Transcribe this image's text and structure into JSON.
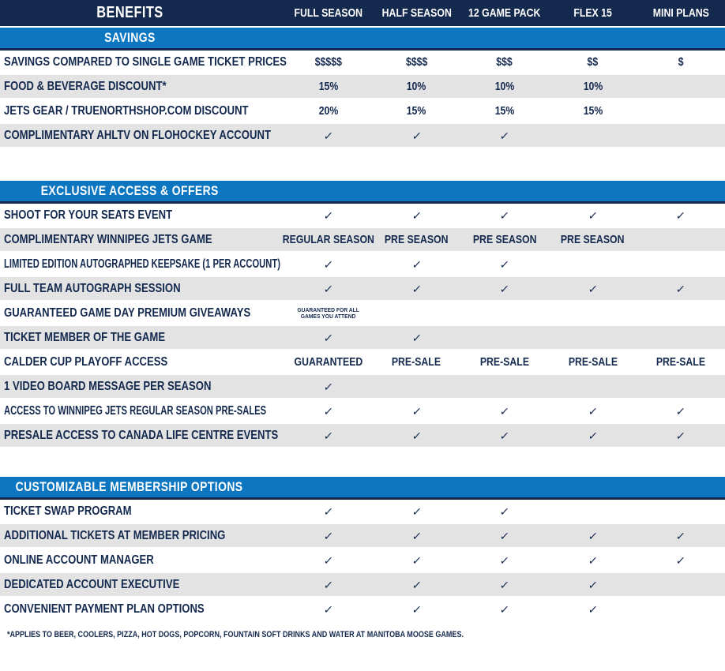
{
  "chart_data": {
    "type": "table",
    "title": "BENEFITS",
    "columns": [
      "FULL SEASON",
      "HALF SEASON",
      "12 GAME PACK",
      "FLEX 15",
      "MINI PLANS"
    ],
    "sections": [
      {
        "title": "SAVINGS",
        "rows": [
          {
            "label": "SAVINGS COMPARED TO SINGLE GAME TICKET PRICES",
            "values": [
              "$$$$$",
              "$$$$",
              "$$$",
              "$$",
              "$"
            ]
          },
          {
            "label": "FOOD & BEVERAGE DISCOUNT*",
            "values": [
              "15%",
              "10%",
              "10%",
              "10%",
              ""
            ]
          },
          {
            "label": "JETS GEAR / TRUENORTHSHOP.COM DISCOUNT",
            "values": [
              "20%",
              "15%",
              "15%",
              "15%",
              ""
            ]
          },
          {
            "label": "COMPLIMENTARY AHLTV ON FLOHOCKEY ACCOUNT",
            "values": [
              "✓",
              "✓",
              "✓",
              "",
              ""
            ]
          }
        ]
      },
      {
        "title": "EXCLUSIVE ACCESS & OFFERS",
        "rows": [
          {
            "label": "SHOOT FOR YOUR SEATS EVENT",
            "values": [
              "✓",
              "✓",
              "✓",
              "✓",
              "✓"
            ]
          },
          {
            "label": "COMPLIMENTARY WINNIPEG JETS GAME",
            "values": [
              "REGULAR SEASON",
              "PRE SEASON",
              "PRE SEASON",
              "PRE SEASON",
              ""
            ]
          },
          {
            "label": "LIMITED EDITION AUTOGRAPHED KEEPSAKE (1 PER ACCOUNT)",
            "values": [
              "✓",
              "✓",
              "✓",
              "",
              ""
            ]
          },
          {
            "label": "FULL TEAM AUTOGRAPH SESSION",
            "values": [
              "✓",
              "✓",
              "✓",
              "✓",
              "✓"
            ]
          },
          {
            "label": "GUARANTEED GAME DAY PREMIUM GIVEAWAYS",
            "values": [
              {
                "lines": [
                  "GUARANTEED FOR ALL",
                  "GAMES YOU ATTEND"
                ]
              },
              "",
              "",
              "",
              ""
            ]
          },
          {
            "label": "TICKET MEMBER OF THE GAME",
            "values": [
              "✓",
              "✓",
              "",
              "",
              ""
            ]
          },
          {
            "label": "CALDER CUP PLAYOFF ACCESS",
            "values": [
              "GUARANTEED",
              "PRE-SALE",
              "PRE-SALE",
              "PRE-SALE",
              "PRE-SALE"
            ]
          },
          {
            "label": "1 VIDEO BOARD MESSAGE PER SEASON",
            "values": [
              "✓",
              "",
              "",
              "",
              ""
            ]
          },
          {
            "label": "ACCESS TO WINNIPEG JETS REGULAR SEASON PRE-SALES",
            "values": [
              "✓",
              "✓",
              "✓",
              "✓",
              "✓"
            ]
          },
          {
            "label": "PRESALE ACCESS TO CANADA LIFE CENTRE EVENTS",
            "values": [
              "✓",
              "✓",
              "✓",
              "✓",
              "✓"
            ]
          }
        ]
      },
      {
        "title": "CUSTOMIZABLE MEMBERSHIP OPTIONS",
        "rows": [
          {
            "label": "TICKET SWAP PROGRAM",
            "values": [
              "✓",
              "✓",
              "✓",
              "",
              ""
            ]
          },
          {
            "label": "ADDITIONAL TICKETS AT MEMBER PRICING",
            "values": [
              "✓",
              "✓",
              "✓",
              "✓",
              "✓"
            ]
          },
          {
            "label": "ONLINE ACCOUNT MANAGER",
            "values": [
              "✓",
              "✓",
              "✓",
              "✓",
              "✓"
            ]
          },
          {
            "label": "DEDICATED ACCOUNT EXECUTIVE",
            "values": [
              "✓",
              "✓",
              "✓",
              "✓",
              ""
            ]
          },
          {
            "label": "CONVENIENT PAYMENT PLAN OPTIONS",
            "values": [
              "✓",
              "✓",
              "✓",
              "✓",
              ""
            ]
          }
        ]
      }
    ],
    "footnote": "*APPLIES TO BEER, COOLERS, PIZZA, HOT DOGS, POPCORN, FOUNTAIN SOFT DRINKS AND WATER AT MANITOBA MOOSE GAMES.",
    "check_glyph": "✓",
    "layout_hints": {
      "legend_position": "none",
      "grid": "striped-rows"
    }
  },
  "colors": {
    "navy": "#14294e",
    "blue": "#0c76c1",
    "stripe_gray": "#e3e3e4",
    "white": "#ffffff"
  }
}
